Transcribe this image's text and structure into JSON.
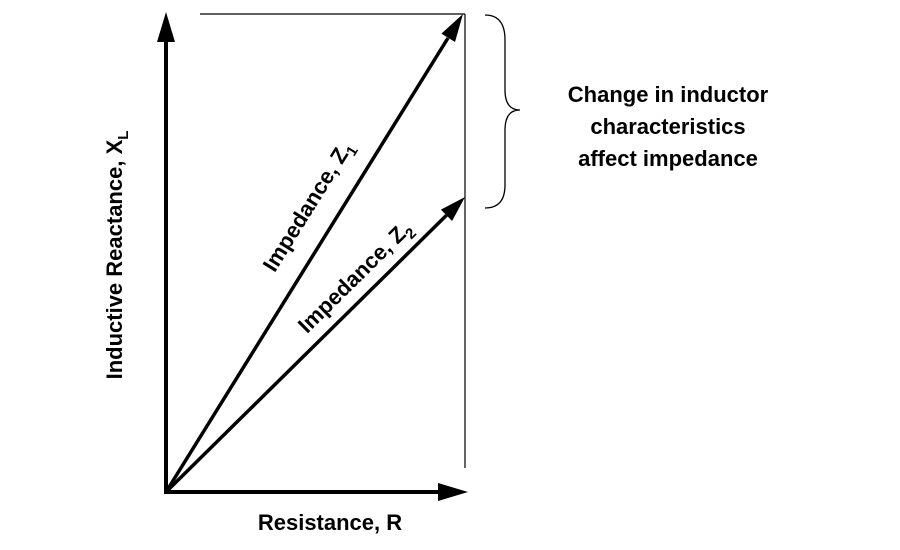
{
  "axes": {
    "x_label": "Resistance, R",
    "y_label": {
      "text": "Inductive Reactance, X",
      "subscript": "L"
    }
  },
  "vectors": [
    {
      "label": "Impedance, Z",
      "subscript": "1"
    },
    {
      "label": "Impedance, Z",
      "subscript": "2"
    }
  ],
  "annotation": {
    "lines": [
      "Change in inductor",
      "characteristics",
      "affect impedance"
    ]
  }
}
